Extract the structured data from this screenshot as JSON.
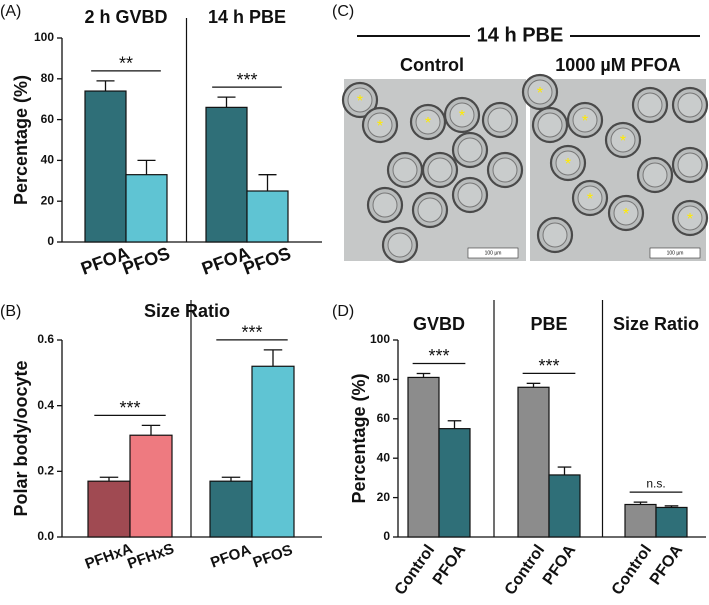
{
  "chart_data": [
    {
      "type": "bar",
      "panel": "(A)",
      "ylabel": "Percentage (%)",
      "ylim": [
        0,
        100
      ],
      "yticks": [
        0,
        20,
        40,
        60,
        80,
        100
      ],
      "groups": [
        {
          "title": "2 h GVBD",
          "categories": [
            "PFOA",
            "PFOS"
          ],
          "colors": [
            "#2f6f78",
            "#5fc4d3"
          ],
          "values": [
            74,
            33
          ],
          "errors": [
            5,
            7
          ],
          "significance": "**"
        },
        {
          "title": "14 h PBE",
          "categories": [
            "PFOA",
            "PFOS"
          ],
          "colors": [
            "#2f6f78",
            "#5fc4d3"
          ],
          "values": [
            66,
            25
          ],
          "errors": [
            5,
            8
          ],
          "significance": "***"
        }
      ]
    },
    {
      "type": "bar",
      "panel": "(B)",
      "title": "Size Ratio",
      "ylabel": "Polar body/oocyte",
      "ylim": [
        0,
        0.6
      ],
      "yticks": [
        {
          "value": 0,
          "label": "0.0"
        },
        0.2,
        0.4,
        0.6
      ],
      "groups": [
        {
          "categories": [
            "PFHxA",
            "PFHxS"
          ],
          "colors": [
            "#a04a52",
            "#ee7a80"
          ],
          "values": [
            0.17,
            0.31
          ],
          "errors": [
            0.012,
            0.03
          ],
          "significance": "***"
        },
        {
          "categories": [
            "PFOA",
            "PFOS"
          ],
          "colors": [
            "#2f6f78",
            "#5fc4d3"
          ],
          "values": [
            0.17,
            0.52
          ],
          "errors": [
            0.012,
            0.05
          ],
          "significance": "***"
        }
      ]
    },
    {
      "type": "bar",
      "panel": "(D)",
      "ylabel": "Percentage (%)",
      "ylim": [
        0,
        100
      ],
      "yticks": [
        0,
        20,
        40,
        60,
        80,
        100
      ],
      "groups": [
        {
          "title": "GVBD",
          "categories": [
            "Control",
            "PFOA"
          ],
          "colors": [
            "#8c8c8c",
            "#2f6f78"
          ],
          "values": [
            81,
            55
          ],
          "errors": [
            2,
            4
          ],
          "significance": "***"
        },
        {
          "title": "PBE",
          "categories": [
            "Control",
            "PFOA"
          ],
          "colors": [
            "#8c8c8c",
            "#2f6f78"
          ],
          "values": [
            76,
            31.5
          ],
          "errors": [
            2,
            4
          ],
          "significance": "***"
        },
        {
          "title": "Size Ratio",
          "categories": [
            "Control",
            "PFOA"
          ],
          "colors": [
            "#8c8c8c",
            "#2f6f78"
          ],
          "values": [
            16.5,
            15
          ],
          "errors": [
            1.2,
            0.8
          ],
          "significance": "n.s."
        }
      ]
    }
  ],
  "micrograph": {
    "panel": "(C)",
    "title": "14 h PBE",
    "images": [
      {
        "label": "Control",
        "scale_bar": "100 µm"
      },
      {
        "label": "1000 µM PFOA",
        "scale_bar": "100 µm"
      }
    ]
  }
}
